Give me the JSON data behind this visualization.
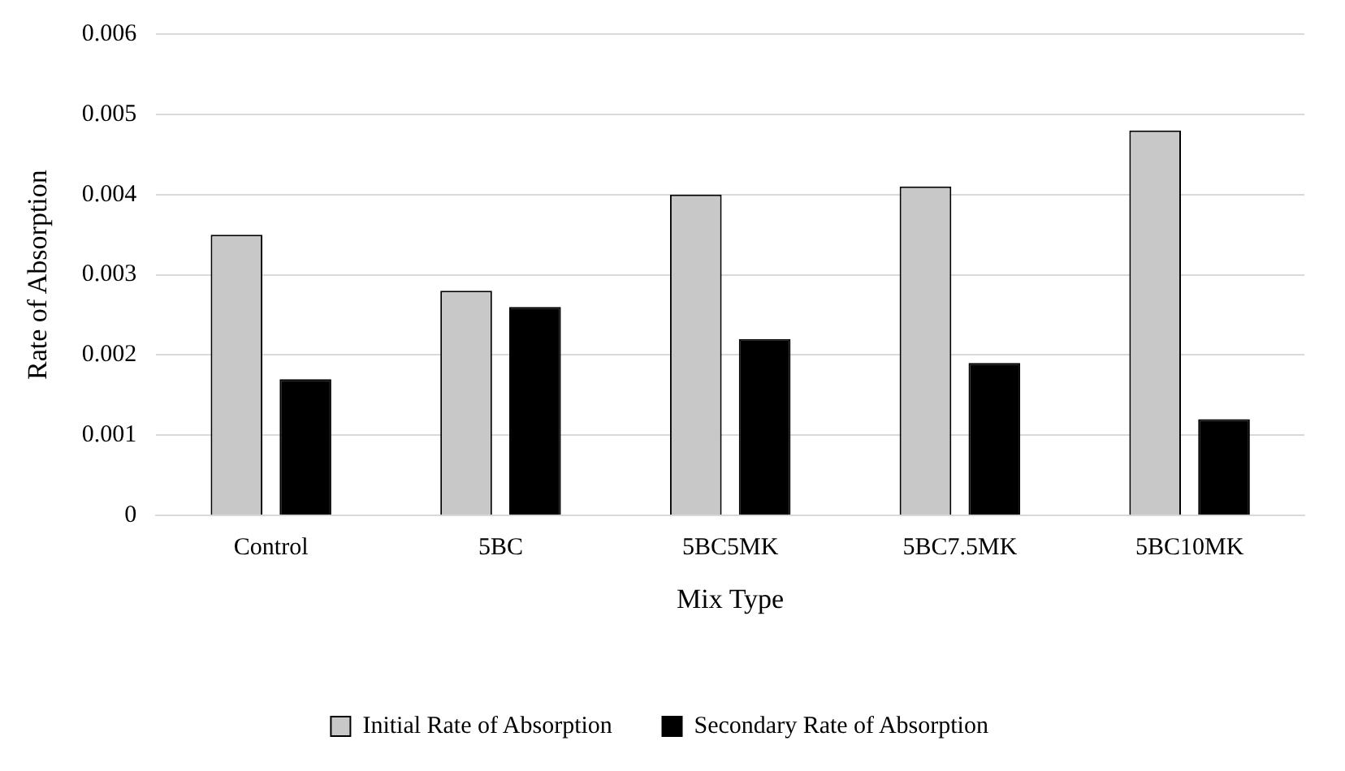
{
  "chart_data": {
    "type": "bar",
    "xlabel": "Mix Type",
    "ylabel": "Rate of Absorption",
    "categories": [
      "Control",
      "5BC",
      "5BC5MK",
      "5BC7.5MK",
      "5BC10MK"
    ],
    "series": [
      {
        "name": "Initial Rate of Absorption",
        "color": "#c8c8c8",
        "values": [
          0.0035,
          0.0028,
          0.004,
          0.0041,
          0.0048
        ]
      },
      {
        "name": "Secondary Rate of Absorption",
        "color": "#000000",
        "values": [
          0.0017,
          0.0026,
          0.0022,
          0.0019,
          0.0012
        ]
      }
    ],
    "ylim": [
      0,
      0.006
    ],
    "yticks": [
      0,
      0.001,
      0.002,
      0.003,
      0.004,
      0.005,
      0.006
    ],
    "grid": "y",
    "legend": "bottom"
  }
}
